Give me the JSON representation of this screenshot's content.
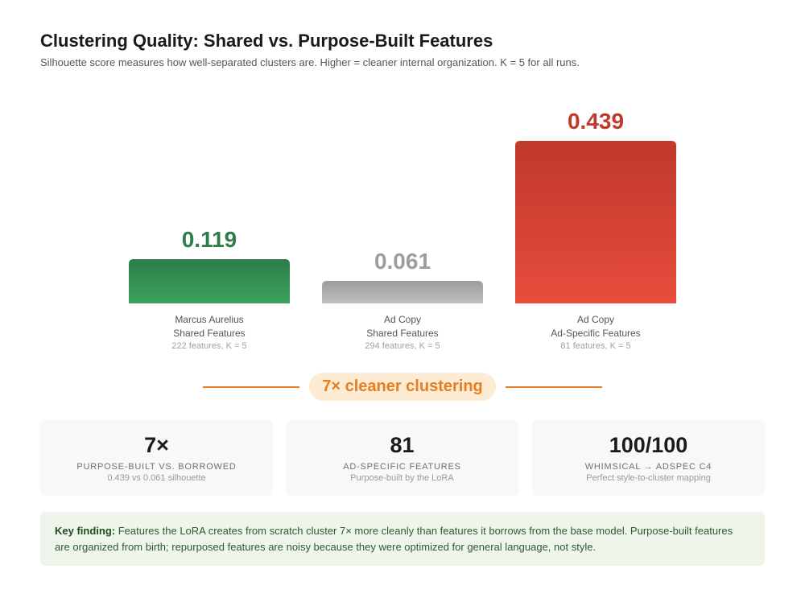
{
  "header": {
    "title": "Clustering Quality: Shared vs. Purpose-Built Features",
    "subtitle": "Silhouette score measures how well-separated clusters are. Higher = cleaner internal organization. K = 5 for all runs."
  },
  "chart_data": {
    "type": "bar",
    "title": "Clustering Quality: Shared vs. Purpose-Built Features",
    "ylabel": "",
    "xlabel": "",
    "ylim": [
      0,
      0.439
    ],
    "grid": false,
    "categories": [
      "Marcus Aurelius Shared Features",
      "Ad Copy Shared Features",
      "Ad Copy Ad-Specific Features"
    ],
    "bars": [
      {
        "value": 0.119,
        "value_label": "0.119",
        "line1": "Marcus Aurelius",
        "line2": "Shared Features",
        "detail": "222 features, K = 5",
        "color_top": "#2e7d4a",
        "color_bottom": "#3aa35e",
        "label_color": "#2e7d4a"
      },
      {
        "value": 0.061,
        "value_label": "0.061",
        "line1": "Ad Copy",
        "line2": "Shared Features",
        "detail": "294 features, K = 5",
        "color_top": "#9c9c9c",
        "color_bottom": "#c0c0c0",
        "label_color": "#9c9c9c"
      },
      {
        "value": 0.439,
        "value_label": "0.439",
        "line1": "Ad Copy",
        "line2": "Ad-Specific Features",
        "detail": "81 features, K = 5",
        "color_top": "#c0392b",
        "color_bottom": "#e74c3c",
        "label_color": "#c0392b"
      }
    ]
  },
  "callout": {
    "text": "7× cleaner clustering",
    "color": "#e67e22"
  },
  "stats": [
    {
      "value": "7×",
      "label": "Purpose-built vs. borrowed",
      "sub": "0.439 vs 0.061 silhouette"
    },
    {
      "value": "81",
      "label": "Ad-specific features",
      "sub": "Purpose-built by the LoRA"
    },
    {
      "value": "100/100",
      "label": "Whimsical → AdSpec C4",
      "sub": "Perfect style-to-cluster mapping"
    }
  ],
  "finding": {
    "lead": "Key finding:",
    "text": " Features the LoRA creates from scratch cluster 7× more cleanly than features it borrows from the base model. Purpose-built features are organized from birth; repurposed features are noisy because they were optimized for general language, not style."
  }
}
